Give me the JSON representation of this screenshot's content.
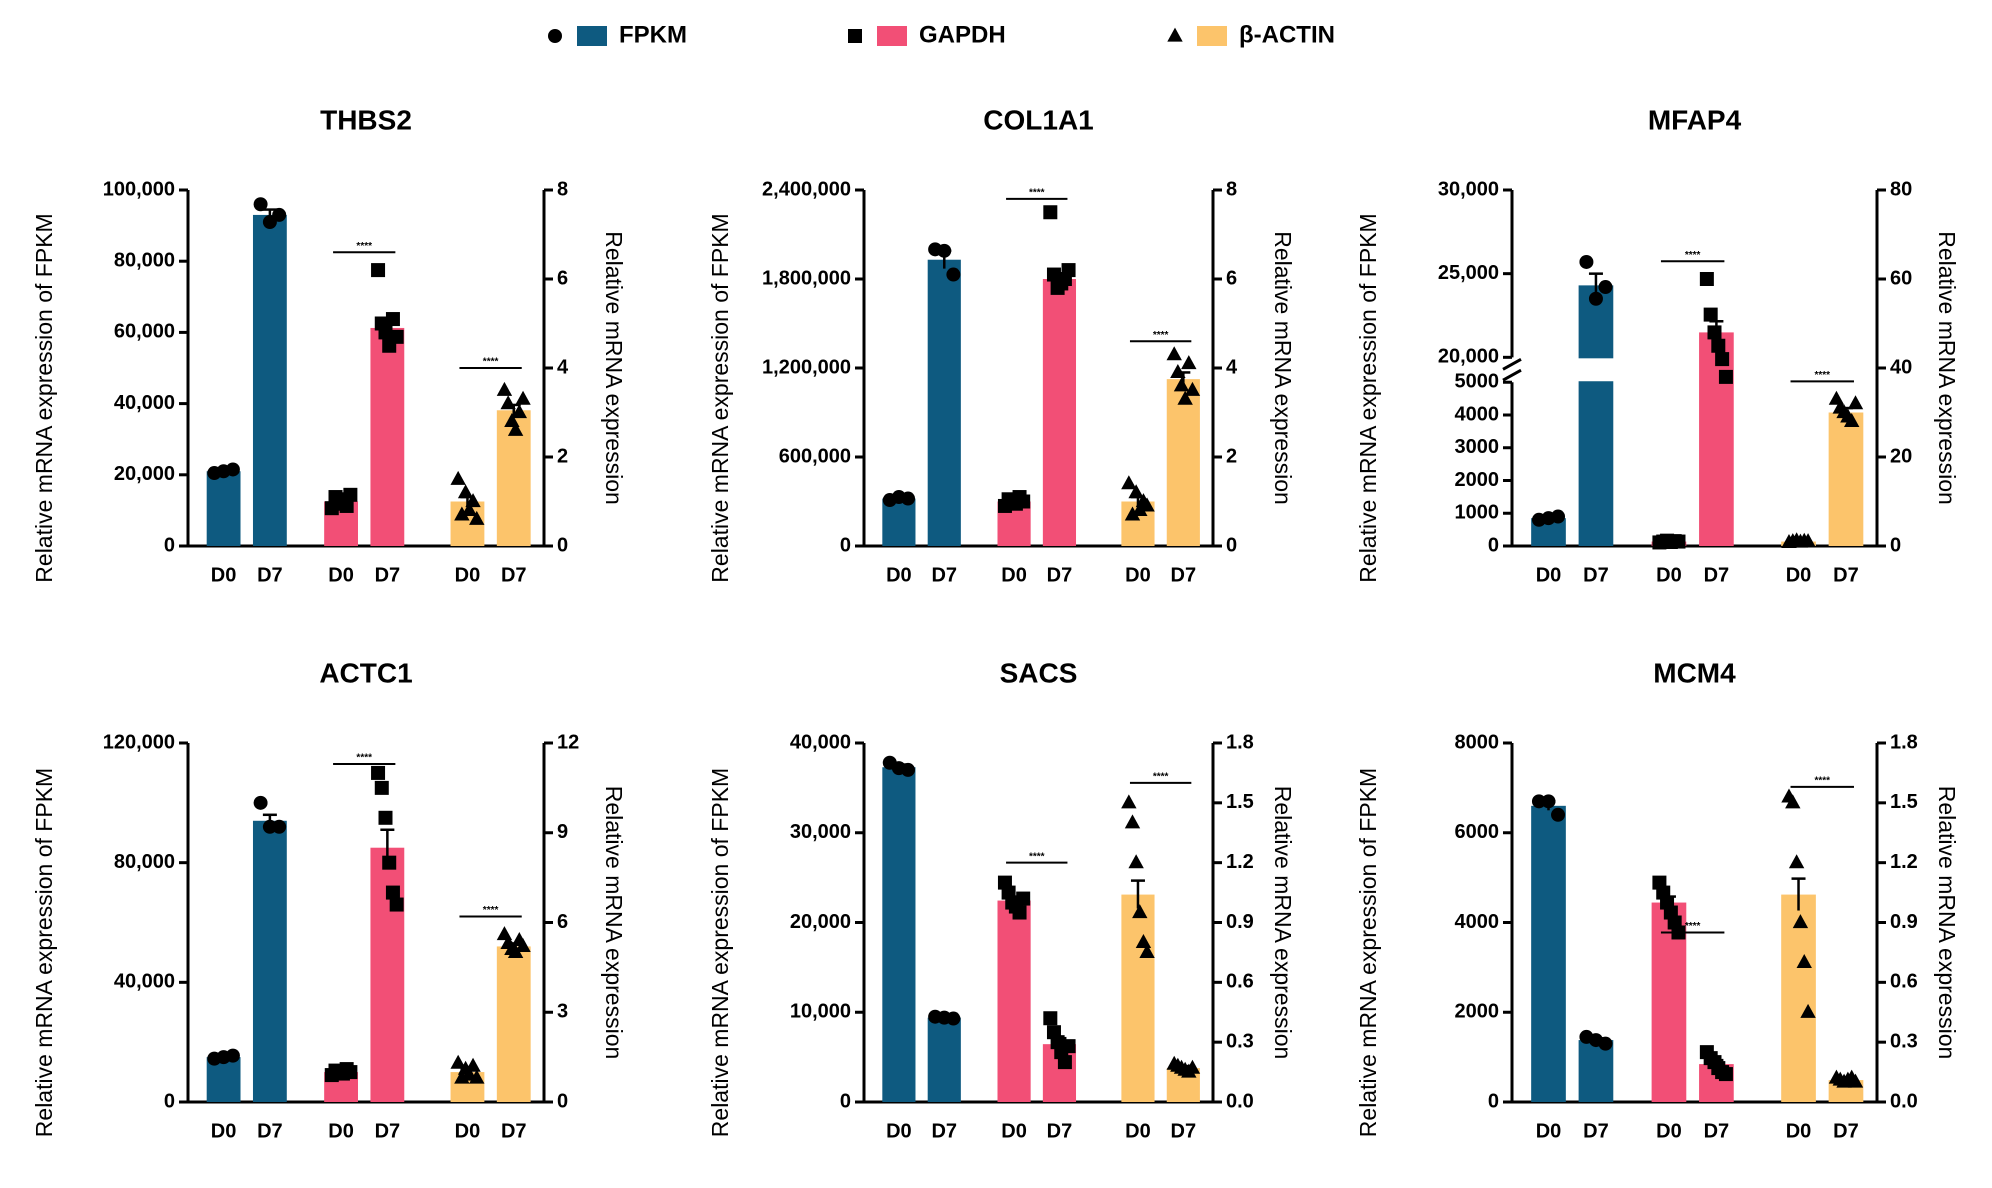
{
  "chart_data": [
    {
      "type": "bar",
      "title": "THBS2",
      "y_label": "Relative mRNA expression of FPKM",
      "y2_label": "Relative mRNA expression",
      "categories": [
        "D0",
        "D7"
      ],
      "ylim": [
        0,
        100000
      ],
      "yticks": [
        0,
        {
          "value": 20000,
          "label": "20,000"
        },
        {
          "value": 40000,
          "label": "40,000"
        },
        {
          "value": 60000,
          "label": "60,000"
        },
        {
          "value": 80000,
          "label": "80,000"
        },
        {
          "value": 100000,
          "label": "100,000"
        }
      ],
      "y2lim": [
        0,
        8
      ],
      "y2ticks": [
        0,
        2,
        4,
        6,
        8
      ],
      "series": [
        {
          "name": "FPKM",
          "color": "#0e5a80",
          "marker": "circle",
          "values": [
            21000,
            93000
          ],
          "errors": [
            500,
            1500
          ],
          "points": [
            [
              20500,
              21000,
              21500
            ],
            [
              96000,
              91000,
              93000
            ]
          ]
        },
        {
          "name": "GAPDH",
          "color": "#f24f76",
          "marker": "square",
          "axis": "y2",
          "values": [
            1.0,
            4.9
          ],
          "errors": [
            0.07,
            0.15
          ],
          "points": [
            [
              0.85,
              1.1,
              0.95,
              1.05,
              0.9,
              1.15
            ],
            [
              6.2,
              5.0,
              4.8,
              4.5,
              5.1,
              4.7
            ]
          ]
        },
        {
          "name": "β-ACTIN",
          "color": "#fcc46b",
          "marker": "triangle",
          "axis": "y2",
          "values": [
            1.0,
            3.05
          ],
          "errors": [
            0.1,
            0.12
          ],
          "points": [
            [
              1.5,
              0.7,
              1.2,
              0.8,
              1.0,
              0.6
            ],
            [
              3.5,
              3.2,
              2.8,
              2.6,
              3.0,
              3.3
            ]
          ]
        }
      ],
      "annotations": [
        {
          "label": "****",
          "y": 6.6
        },
        {
          "label": "****",
          "y": 4.0
        }
      ]
    },
    {
      "type": "bar",
      "title": "COL1A1",
      "y_label": "Relative mRNA expression of FPKM",
      "y2_label": "Relative mRNA expression",
      "categories": [
        "D0",
        "D7"
      ],
      "ylim": [
        0,
        2400000
      ],
      "yticks": [
        0,
        {
          "value": 600000,
          "label": "600,000"
        },
        {
          "value": 1200000,
          "label": "1,200,000"
        },
        {
          "value": 1800000,
          "label": "1,800,000"
        },
        {
          "value": 2400000,
          "label": "2,400,000"
        }
      ],
      "y2lim": [
        0,
        8
      ],
      "y2ticks": [
        0,
        2,
        4,
        6,
        8
      ],
      "series": [
        {
          "name": "FPKM",
          "color": "#0e5a80",
          "marker": "circle",
          "values": [
            320000,
            1930000
          ],
          "errors": [
            15000,
            60000
          ],
          "points": [
            [
              310000,
              330000,
              320000
            ],
            [
              2000000,
              1990000,
              1830000
            ]
          ]
        },
        {
          "name": "GAPDH",
          "color": "#f24f76",
          "marker": "square",
          "axis": "y2",
          "values": [
            1.0,
            6.0
          ],
          "errors": [
            0.05,
            0.12
          ],
          "points": [
            [
              0.9,
              1.05,
              1.0,
              0.95,
              1.1,
              1.0
            ],
            [
              7.5,
              6.1,
              5.8,
              5.9,
              6.0,
              6.2
            ]
          ]
        },
        {
          "name": "β-ACTIN",
          "color": "#fcc46b",
          "marker": "triangle",
          "axis": "y2",
          "values": [
            1.0,
            3.75
          ],
          "errors": [
            0.1,
            0.15
          ],
          "points": [
            [
              1.4,
              0.7,
              1.2,
              0.8,
              1.0,
              0.9
            ],
            [
              4.3,
              3.9,
              3.6,
              3.3,
              4.1,
              3.5
            ]
          ]
        }
      ],
      "annotations": [
        {
          "label": "****",
          "y": 7.8
        },
        {
          "label": "****",
          "y": 4.6
        }
      ]
    },
    {
      "type": "bar",
      "title": "MFAP4",
      "y_label": "Relative mRNA expression of FPKM",
      "y2_label": "Relative mRNA expression",
      "categories": [
        "D0",
        "D7"
      ],
      "ylim": [
        0,
        30000
      ],
      "ybreak": [
        5000,
        20000
      ],
      "yticks": [
        0,
        1000,
        2000,
        3000,
        4000,
        5000,
        {
          "value": 20000,
          "label": "20,000"
        },
        {
          "value": 25000,
          "label": "25,000"
        },
        {
          "value": 30000,
          "label": "30,000"
        }
      ],
      "y2lim": [
        0,
        80
      ],
      "y2ticks": [
        0,
        20,
        40,
        60,
        80
      ],
      "series": [
        {
          "name": "FPKM",
          "color": "#0e5a80",
          "marker": "circle",
          "values": [
            850,
            24300
          ],
          "errors": [
            40,
            700
          ],
          "points": [
            [
              800,
              850,
              900
            ],
            [
              25700,
              23500,
              24200
            ]
          ]
        },
        {
          "name": "GAPDH",
          "color": "#f24f76",
          "marker": "square",
          "axis": "y2",
          "values": [
            1.0,
            48
          ],
          "errors": [
            0.1,
            2.5
          ],
          "points": [
            [
              0.8,
              1.0,
              1.2,
              0.9,
              1.1,
              1.0
            ],
            [
              60,
              52,
              48,
              45,
              42,
              38
            ]
          ]
        },
        {
          "name": "β-ACTIN",
          "color": "#fcc46b",
          "marker": "triangle",
          "axis": "y2",
          "values": [
            1.0,
            30
          ],
          "errors": [
            0.1,
            1
          ],
          "points": [
            [
              0.8,
              1.0,
              1.2,
              0.9,
              1.1,
              1.0
            ],
            [
              33,
              31,
              30,
              29,
              28,
              32
            ]
          ]
        }
      ],
      "annotations": [
        {
          "label": "****",
          "y": 64
        },
        {
          "label": "****",
          "y": 37
        }
      ]
    },
    {
      "type": "bar",
      "title": "ACTC1",
      "y_label": "Relative mRNA expression of FPKM",
      "y2_label": "Relative mRNA expression",
      "categories": [
        "D0",
        "D7"
      ],
      "ylim": [
        0,
        120000
      ],
      "yticks": [
        0,
        {
          "value": 40000,
          "label": "40,000"
        },
        {
          "value": 80000,
          "label": "80,000"
        },
        {
          "value": 120000,
          "label": "120,000"
        }
      ],
      "y2lim": [
        0,
        12
      ],
      "y2ticks": [
        0,
        3,
        6,
        9,
        12
      ],
      "series": [
        {
          "name": "FPKM",
          "color": "#0e5a80",
          "marker": "circle",
          "values": [
            15000,
            94000
          ],
          "errors": [
            500,
            2000
          ],
          "points": [
            [
              14500,
              15000,
              15500
            ],
            [
              100000,
              92000,
              92000
            ]
          ]
        },
        {
          "name": "GAPDH",
          "color": "#f24f76",
          "marker": "square",
          "axis": "y2",
          "values": [
            1.0,
            8.5
          ],
          "errors": [
            0.05,
            0.6
          ],
          "points": [
            [
              0.9,
              1.05,
              1.0,
              0.95,
              1.1,
              1.0
            ],
            [
              11,
              10.5,
              9.5,
              8.0,
              7.0,
              6.6
            ]
          ]
        },
        {
          "name": "β-ACTIN",
          "color": "#fcc46b",
          "marker": "triangle",
          "axis": "y2",
          "values": [
            1.0,
            5.2
          ],
          "errors": [
            0.1,
            0.1
          ],
          "points": [
            [
              1.3,
              0.8,
              1.1,
              0.9,
              1.2,
              0.8
            ],
            [
              5.6,
              5.3,
              5.1,
              5.0,
              5.4,
              5.2
            ]
          ]
        }
      ],
      "annotations": [
        {
          "label": "****",
          "y": 11.3
        },
        {
          "label": "****",
          "y": 6.2
        }
      ]
    },
    {
      "type": "bar",
      "title": "SACS",
      "y_label": "Relative mRNA expression of FPKM",
      "y2_label": "Relative mRNA expression",
      "categories": [
        "D0",
        "D7"
      ],
      "ylim": [
        0,
        40000
      ],
      "yticks": [
        0,
        {
          "value": 10000,
          "label": "10,000"
        },
        {
          "value": 20000,
          "label": "20,000"
        },
        {
          "value": 30000,
          "label": "30,000"
        },
        {
          "value": 40000,
          "label": "40,000"
        }
      ],
      "y2lim": [
        0,
        1.8
      ],
      "y2ticks": [
        {
          "value": 0,
          "label": "0.0"
        },
        0.3,
        0.6,
        0.9,
        1.2,
        1.5,
        1.8
      ],
      "series": [
        {
          "name": "FPKM",
          "color": "#0e5a80",
          "marker": "circle",
          "values": [
            37300,
            9400
          ],
          "errors": [
            300,
            150
          ],
          "points": [
            [
              37800,
              37200,
              37000
            ],
            [
              9500,
              9400,
              9300
            ]
          ]
        },
        {
          "name": "GAPDH",
          "color": "#f24f76",
          "marker": "square",
          "axis": "y2",
          "values": [
            1.01,
            0.29
          ],
          "errors": [
            0.02,
            0.03
          ],
          "points": [
            [
              1.1,
              1.05,
              1.0,
              0.98,
              0.95,
              1.02
            ],
            [
              0.42,
              0.35,
              0.3,
              0.25,
              0.2,
              0.28
            ]
          ]
        },
        {
          "name": "β-ACTIN",
          "color": "#fcc46b",
          "marker": "triangle",
          "axis": "y2",
          "values": [
            1.04,
            0.17
          ],
          "errors": [
            0.07,
            0.01
          ],
          "points": [
            [
              1.5,
              1.4,
              1.2,
              0.95,
              0.8,
              0.75
            ],
            [
              0.19,
              0.18,
              0.17,
              0.16,
              0.15,
              0.17
            ]
          ]
        }
      ],
      "annotations": [
        {
          "label": "****",
          "y": 1.2
        },
        {
          "label": "****",
          "y": 1.6
        }
      ]
    },
    {
      "type": "bar",
      "title": "MCM4",
      "y_label": "Relative mRNA expression of FPKM",
      "y2_label": "Relative mRNA expression",
      "categories": [
        "D0",
        "D7"
      ],
      "ylim": [
        0,
        8000
      ],
      "yticks": [
        0,
        2000,
        4000,
        6000,
        8000
      ],
      "y2lim": [
        0,
        1.8
      ],
      "y2ticks": [
        {
          "value": 0,
          "label": "0.0"
        },
        0.3,
        0.6,
        0.9,
        1.2,
        1.5,
        1.8
      ],
      "series": [
        {
          "name": "FPKM",
          "color": "#0e5a80",
          "marker": "circle",
          "values": [
            6600,
            1380
          ],
          "errors": [
            100,
            40
          ],
          "points": [
            [
              6700,
              6700,
              6400
            ],
            [
              1450,
              1380,
              1300
            ]
          ]
        },
        {
          "name": "GAPDH",
          "color": "#f24f76",
          "marker": "square",
          "axis": "y2",
          "values": [
            1.0,
            0.19
          ],
          "errors": [
            0.03,
            0.02
          ],
          "points": [
            [
              1.1,
              1.05,
              1.0,
              0.95,
              0.9,
              0.85
            ],
            [
              0.25,
              0.22,
              0.2,
              0.17,
              0.15,
              0.14
            ]
          ]
        },
        {
          "name": "β-ACTIN",
          "color": "#fcc46b",
          "marker": "triangle",
          "axis": "y2",
          "values": [
            1.04,
            0.11
          ],
          "errors": [
            0.08,
            0.01
          ],
          "points": [
            [
              1.53,
              1.5,
              1.2,
              0.9,
              0.7,
              0.45
            ],
            [
              0.12,
              0.11,
              0.1,
              0.11,
              0.12,
              0.1
            ]
          ]
        }
      ],
      "annotations": [
        {
          "label": "****",
          "y": 0.85
        },
        {
          "label": "****",
          "y": 1.58
        }
      ]
    }
  ]
}
